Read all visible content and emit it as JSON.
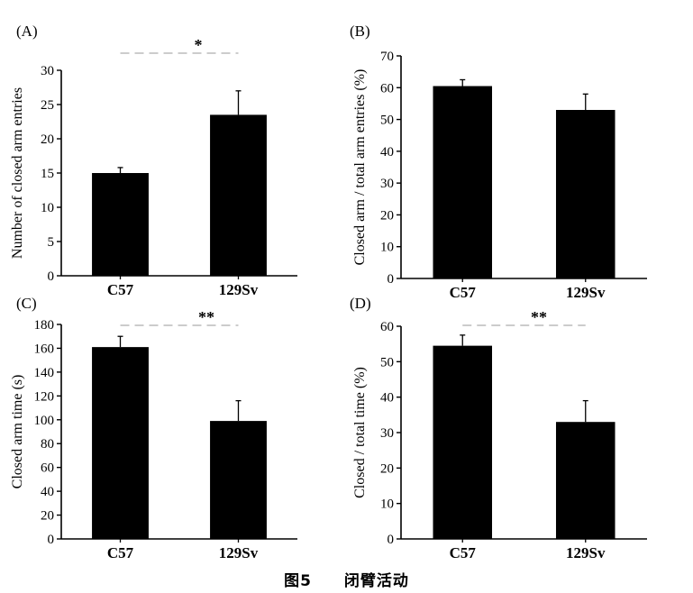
{
  "chart_data": [
    {
      "type": "bar",
      "panel": "(A)",
      "categories": [
        "C57",
        "129Sv"
      ],
      "values": [
        15.0,
        23.5
      ],
      "errors": [
        0.8,
        3.5
      ],
      "ylabel": "Number of closed arm entries",
      "ylim": [
        0,
        30
      ],
      "yticks": [
        "0",
        "5",
        "10",
        "15",
        "20",
        "25",
        "30"
      ],
      "significance": "*",
      "grid": false
    },
    {
      "type": "bar",
      "panel": "(B)",
      "categories": [
        "C57",
        "129Sv"
      ],
      "values": [
        60.5,
        53.0
      ],
      "errors": [
        2.0,
        5.0
      ],
      "ylabel": "Closed arm / total arm entries (%)",
      "ylim": [
        0,
        70
      ],
      "yticks": [
        "0",
        "10",
        "20",
        "30",
        "40",
        "50",
        "60",
        "70"
      ],
      "significance": "",
      "grid": false
    },
    {
      "type": "bar",
      "panel": "(C)",
      "categories": [
        "C57",
        "129Sv"
      ],
      "values": [
        161,
        99
      ],
      "errors": [
        9,
        17
      ],
      "ylabel": "Closed arm time (s)",
      "ylim": [
        0,
        180
      ],
      "yticks": [
        "0",
        "20",
        "40",
        "60",
        "80",
        "100",
        "120",
        "140",
        "160",
        "180"
      ],
      "significance": "**",
      "grid": false
    },
    {
      "type": "bar",
      "panel": "(D)",
      "categories": [
        "C57",
        "129Sv"
      ],
      "values": [
        54.5,
        33.0
      ],
      "errors": [
        3.0,
        6.0
      ],
      "ylabel": "Closed / total time (%)",
      "ylim": [
        0,
        60
      ],
      "yticks": [
        "0",
        "10",
        "20",
        "30",
        "40",
        "50",
        "60"
      ],
      "significance": "**",
      "grid": false
    }
  ],
  "caption": {
    "figure_number": "图5",
    "title": "闭臂活动"
  },
  "colors": {
    "bar": "#000000",
    "axis": "#000000",
    "background": "#ffffff"
  }
}
